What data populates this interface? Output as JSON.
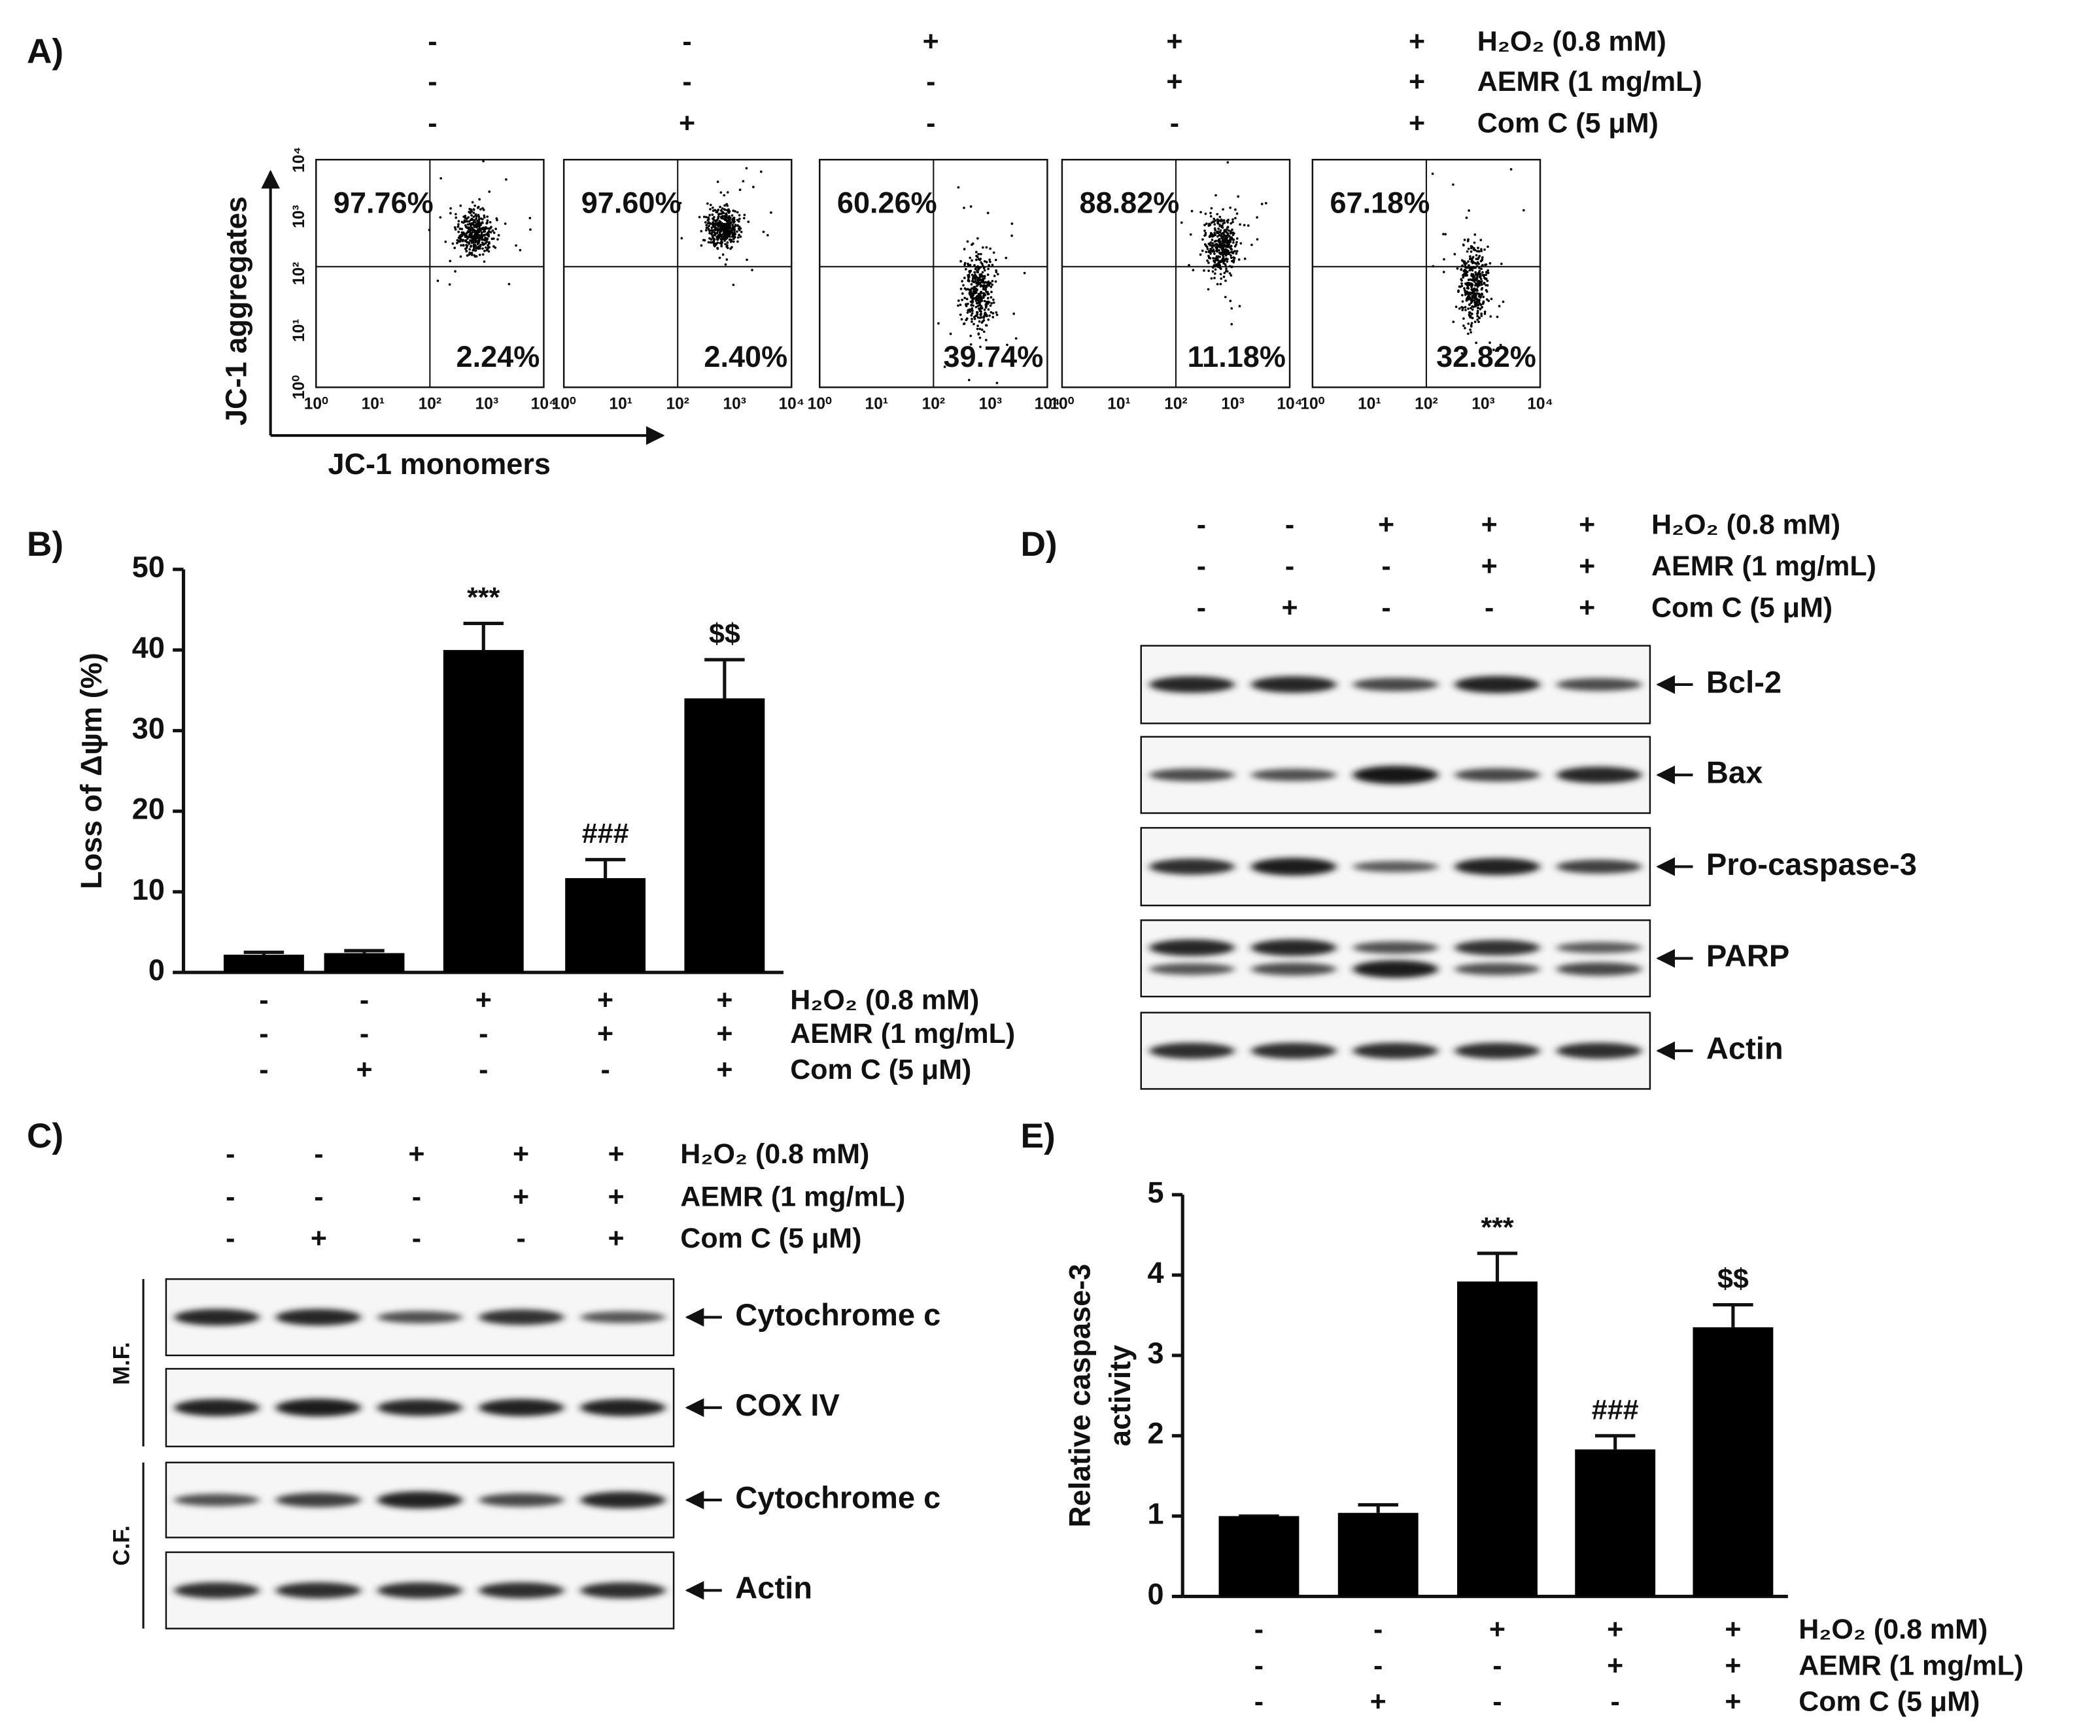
{
  "panel_labels": [
    "A)",
    "B)",
    "C)",
    "D)",
    "E)"
  ],
  "treatments": {
    "labels": [
      "H₂O₂ (0.8 mM)",
      "AEMR (1 mg/mL)",
      "Com C (5 μM)"
    ],
    "signs": [
      [
        "-",
        "-",
        "+",
        "+",
        "+"
      ],
      [
        "-",
        "-",
        "-",
        "+",
        "+"
      ],
      [
        "-",
        "+",
        "-",
        "-",
        "+"
      ]
    ]
  },
  "flow": {
    "y_label": "JC-1 aggregates",
    "x_label": "JC-1 monomers",
    "ticks": [
      "10⁰",
      "10¹",
      "10²",
      "10³",
      "10⁴"
    ],
    "plots": [
      {
        "upper": "97.76%",
        "lower": "2.24%"
      },
      {
        "upper": "97.60%",
        "lower": "2.40%"
      },
      {
        "upper": "60.26%",
        "lower": "39.74%"
      },
      {
        "upper": "88.82%",
        "lower": "11.18%"
      },
      {
        "upper": "67.18%",
        "lower": "32.82%"
      }
    ]
  },
  "blot_c": {
    "fractions": [
      "M.F.",
      "C.F."
    ],
    "bands": [
      "Cytochrome c",
      "COX IV",
      "Cytochrome c",
      "Actin"
    ]
  },
  "blot_d": {
    "bands": [
      "Bcl-2",
      "Bax",
      "Pro-caspase-3",
      "PARP",
      "Actin"
    ]
  },
  "chart_data": [
    {
      "type": "bar",
      "y_label": "Loss of Δψm (%)",
      "categories": [
        null,
        null,
        null,
        null,
        null
      ],
      "values": [
        2.2,
        2.4,
        40.0,
        11.7,
        34.0
      ],
      "errors": [
        0.3,
        0.3,
        3.3,
        2.3,
        4.8
      ],
      "annotations": [
        null,
        null,
        "***",
        "###",
        "$$"
      ],
      "color": "#000000",
      "ylim": [
        0,
        50
      ],
      "yticks": [
        0,
        10,
        20,
        30,
        40,
        50
      ]
    },
    {
      "type": "bar",
      "y_label": [
        "Relative caspase-3",
        "activity"
      ],
      "categories": [
        null,
        null,
        null,
        null,
        null
      ],
      "values": [
        1.0,
        1.04,
        3.92,
        1.83,
        3.35
      ],
      "errors": [
        0,
        0.1,
        0.35,
        0.17,
        0.28
      ],
      "annotations": [
        null,
        null,
        "***",
        "###",
        "$$"
      ],
      "color": "#000000",
      "ylim": [
        0,
        5
      ],
      "yticks": [
        0,
        1,
        2,
        3,
        4,
        5
      ]
    }
  ]
}
